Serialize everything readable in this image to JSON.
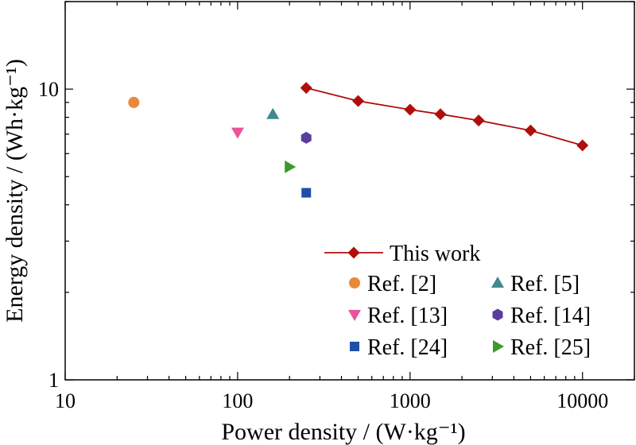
{
  "chart_data": {
    "type": "scatter",
    "xlabel": "Power density / (W·kg⁻¹)",
    "ylabel": "Energy density / (Wh·kg⁻¹)",
    "xscale": "log",
    "yscale": "log",
    "xlim": [
      10,
      20000
    ],
    "ylim": [
      1,
      20
    ],
    "x_ticks": [
      10,
      100,
      1000,
      10000
    ],
    "x_tick_labels": [
      "10",
      "100",
      "1000",
      "10000"
    ],
    "y_ticks": [
      1,
      10
    ],
    "y_tick_labels": [
      "1",
      "10"
    ],
    "grid": false,
    "legend_position": "bottom-right",
    "series": [
      {
        "name": "This work",
        "marker": "diamond",
        "line": true,
        "color": "#B00D0D",
        "x": [
          250,
          500,
          1000,
          1500,
          2500,
          5000,
          10000
        ],
        "y": [
          10.1,
          9.1,
          8.5,
          8.2,
          7.8,
          7.2,
          6.4
        ]
      },
      {
        "name": "Ref. [2]",
        "marker": "circle",
        "line": false,
        "color": "#E8893A",
        "x": [
          25
        ],
        "y": [
          9.0
        ]
      },
      {
        "name": "Ref. [5]",
        "marker": "triangle-up",
        "line": false,
        "color": "#3F8A8C",
        "x": [
          160
        ],
        "y": [
          8.2
        ]
      },
      {
        "name": "Ref. [13]",
        "marker": "triangle-down",
        "line": false,
        "color": "#E8559A",
        "x": [
          100
        ],
        "y": [
          7.1
        ]
      },
      {
        "name": "Ref. [14]",
        "marker": "hexagon",
        "line": false,
        "color": "#5B3D9E",
        "x": [
          250
        ],
        "y": [
          6.8
        ]
      },
      {
        "name": "Ref. [24]",
        "marker": "square",
        "line": false,
        "color": "#1F4FA8",
        "x": [
          250
        ],
        "y": [
          4.4
        ]
      },
      {
        "name": "Ref. [25]",
        "marker": "triangle-right",
        "line": false,
        "color": "#3C9A2A",
        "x": [
          200
        ],
        "y": [
          5.4
        ]
      }
    ]
  }
}
